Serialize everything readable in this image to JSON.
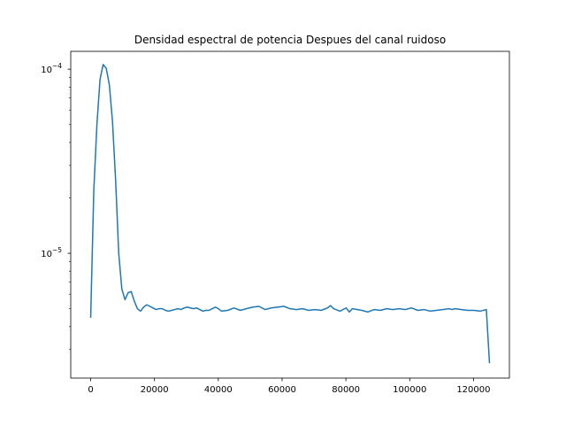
{
  "chart_data": {
    "type": "line",
    "title": "Densidad espectral de potencia Despues del canal ruidoso",
    "xlabel": "",
    "ylabel": "",
    "yscale": "log",
    "xlim": [
      -6250,
      131250
    ],
    "ylim": [
      2.1e-06,
      0.000125
    ],
    "xticks": [
      0,
      20000,
      40000,
      60000,
      80000,
      100000,
      120000
    ],
    "xtick_labels": [
      "0",
      "20000",
      "40000",
      "60000",
      "80000",
      "100000",
      "120000"
    ],
    "yticks": [
      1e-05,
      0.0001
    ],
    "ytick_labels": [
      {
        "base": "10",
        "exp": "−5"
      },
      {
        "base": "10",
        "exp": "−4"
      }
    ],
    "grid": false,
    "line_color": "#1f77b4",
    "series": [
      {
        "x": [
          0,
          977,
          1953,
          2930,
          3906,
          4883,
          5859,
          6836,
          7813,
          8789,
          9766,
          10742,
          11719,
          12695,
          13672,
          14648,
          15625,
          16602,
          17578,
          18555,
          19531,
          20508,
          21484,
          22461,
          23438,
          24414,
          25391,
          26367,
          27344,
          28320,
          29297,
          30273,
          31250,
          32227,
          33203,
          34180,
          35156,
          36133,
          37109,
          38086,
          39063,
          40039,
          41016,
          42969,
          44922,
          46875,
          48828,
          50781,
          52734,
          54688,
          56641,
          58594,
          60547,
          62500,
          64453,
          66406,
          68359,
          70313,
          72266,
          74219,
          75195,
          76172,
          78125,
          80078,
          81055,
          82031,
          84961,
          86914,
          88867,
          90820,
          92773,
          94727,
          96680,
          98633,
          100586,
          102539,
          104492,
          106445,
          108398,
          110352,
          112305,
          113281,
          114258,
          116211,
          118164,
          120117,
          122070,
          124023,
          125000
        ],
        "y": [
          4.5e-06,
          2.2e-05,
          5e-05,
          8.8e-05,
          0.000106,
          0.000101,
          8.2e-05,
          5.2e-05,
          2.5e-05,
          1e-05,
          6.4e-06,
          5.6e-06,
          6.1e-06,
          6.2e-06,
          5.5e-06,
          5e-06,
          4.85e-06,
          5.1e-06,
          5.25e-06,
          5.15e-06,
          5.05e-06,
          4.95e-06,
          5e-06,
          5e-06,
          4.9e-06,
          4.85e-06,
          4.9e-06,
          4.95e-06,
          5e-06,
          4.95e-06,
          5.05e-06,
          5.1e-06,
          5.05e-06,
          5e-06,
          5.05e-06,
          4.95e-06,
          4.85e-06,
          4.9e-06,
          4.9e-06,
          5e-06,
          5.1e-06,
          5e-06,
          4.85e-06,
          4.9e-06,
          5.05e-06,
          4.9e-06,
          5e-06,
          5.1e-06,
          5.15e-06,
          4.95e-06,
          5.05e-06,
          5.1e-06,
          5.15e-06,
          5e-06,
          4.95e-06,
          5e-06,
          4.9e-06,
          4.95e-06,
          4.9e-06,
          5.05e-06,
          5.2e-06,
          5e-06,
          4.85e-06,
          5.05e-06,
          4.8e-06,
          5e-06,
          4.9e-06,
          4.8e-06,
          4.95e-06,
          4.9e-06,
          5e-06,
          4.95e-06,
          5e-06,
          4.95e-06,
          5.05e-06,
          4.9e-06,
          4.95e-06,
          4.85e-06,
          4.9e-06,
          4.95e-06,
          5e-06,
          4.95e-06,
          5e-06,
          4.95e-06,
          4.9e-06,
          4.9e-06,
          4.85e-06,
          4.95e-06,
          2.55e-06
        ]
      }
    ]
  }
}
